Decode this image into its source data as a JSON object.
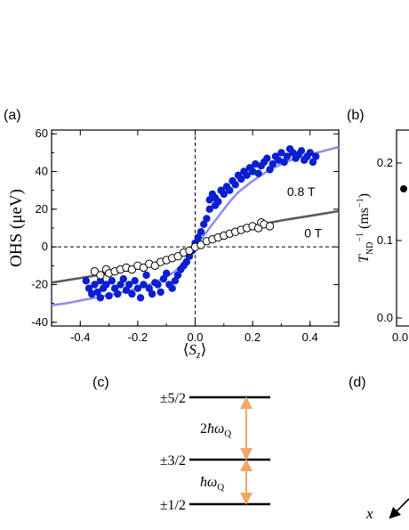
{
  "panel_labels": {
    "a": "(a)",
    "b": "(b)",
    "c": "(c)",
    "d": "(d)"
  },
  "colors": {
    "blue_points": "#0a1fcf",
    "blue_fit": "#8f8fe8",
    "gray_fit": "#5a5a5a",
    "arrow": "#f0a868"
  },
  "chart_data": [
    {
      "id": "a",
      "type": "scatter",
      "xlabel": "⟨S_z⟩",
      "ylabel": "OHS (μeV)",
      "xlim": [
        -0.5,
        0.5
      ],
      "ylim": [
        -42,
        62
      ],
      "x_ticks": [
        -0.4,
        -0.2,
        0.0,
        0.2,
        0.4
      ],
      "x_tick_labels": [
        "-0.4",
        "-0.2",
        "0.0",
        "0.2",
        "0.4"
      ],
      "y_ticks": [
        -40,
        -20,
        0,
        20,
        40,
        60
      ],
      "y_tick_labels": [
        "-40",
        "-20",
        "0",
        "20",
        "40",
        "60"
      ],
      "grid": false,
      "annotations": [
        {
          "text": "0.8 T",
          "x": 0.32,
          "y": 27
        },
        {
          "text": "0 T",
          "x": 0.38,
          "y": 5
        }
      ],
      "series": [
        {
          "marker": "filled",
          "color": "#0a1fcf",
          "points": [
            [
              -0.38,
              -18
            ],
            [
              -0.37,
              -22
            ],
            [
              -0.36,
              -25
            ],
            [
              -0.35,
              -20
            ],
            [
              -0.34,
              -24
            ],
            [
              -0.33,
              -18
            ],
            [
              -0.33,
              -27
            ],
            [
              -0.32,
              -22
            ],
            [
              -0.31,
              -20
            ],
            [
              -0.3,
              -26
            ],
            [
              -0.29,
              -18
            ],
            [
              -0.28,
              -22
            ],
            [
              -0.27,
              -25
            ],
            [
              -0.26,
              -20
            ],
            [
              -0.25,
              -17
            ],
            [
              -0.24,
              -23
            ],
            [
              -0.23,
              -20
            ],
            [
              -0.22,
              -25
            ],
            [
              -0.21,
              -18
            ],
            [
              -0.2,
              -22
            ],
            [
              -0.19,
              -27
            ],
            [
              -0.18,
              -20
            ],
            [
              -0.17,
              -15
            ],
            [
              -0.16,
              -22
            ],
            [
              -0.15,
              -25
            ],
            [
              -0.14,
              -19
            ],
            [
              -0.13,
              -20
            ],
            [
              -0.12,
              -24
            ],
            [
              -0.11,
              -17
            ],
            [
              -0.1,
              -14
            ],
            [
              -0.09,
              -20
            ],
            [
              -0.08,
              -22
            ],
            [
              -0.07,
              -18
            ],
            [
              -0.06,
              -15
            ],
            [
              -0.05,
              -12
            ],
            [
              -0.04,
              -10
            ],
            [
              -0.03,
              -8
            ],
            [
              -0.02,
              -5
            ],
            [
              -0.01,
              -2
            ],
            [
              0.0,
              2
            ],
            [
              0.01,
              5
            ],
            [
              0.02,
              8
            ],
            [
              0.03,
              12
            ],
            [
              0.04,
              15
            ],
            [
              0.05,
              20
            ],
            [
              0.05,
              25
            ],
            [
              0.06,
              28
            ],
            [
              0.07,
              22
            ],
            [
              0.07,
              26
            ],
            [
              0.08,
              24
            ],
            [
              0.09,
              30
            ],
            [
              0.1,
              28
            ],
            [
              0.11,
              32
            ],
            [
              0.12,
              30
            ],
            [
              0.13,
              35
            ],
            [
              0.14,
              33
            ],
            [
              0.15,
              38
            ],
            [
              0.16,
              36
            ],
            [
              0.17,
              40
            ],
            [
              0.18,
              38
            ],
            [
              0.19,
              42
            ],
            [
              0.2,
              40
            ],
            [
              0.21,
              44
            ],
            [
              0.22,
              39
            ],
            [
              0.23,
              43
            ],
            [
              0.24,
              45
            ],
            [
              0.25,
              47
            ],
            [
              0.26,
              41
            ],
            [
              0.27,
              44
            ],
            [
              0.28,
              48
            ],
            [
              0.29,
              46
            ],
            [
              0.3,
              50
            ],
            [
              0.31,
              45
            ],
            [
              0.32,
              48
            ],
            [
              0.33,
              52
            ],
            [
              0.34,
              50
            ],
            [
              0.35,
              47
            ],
            [
              0.36,
              49
            ],
            [
              0.37,
              51
            ],
            [
              0.38,
              46
            ],
            [
              0.39,
              48
            ],
            [
              0.4,
              50
            ],
            [
              0.41,
              45
            ],
            [
              0.42,
              48
            ]
          ]
        },
        {
          "marker": "open",
          "color": "#000000",
          "points": [
            [
              -0.35,
              -13
            ],
            [
              -0.33,
              -15
            ],
            [
              -0.31,
              -12
            ],
            [
              -0.3,
              -14
            ],
            [
              -0.28,
              -13
            ],
            [
              -0.26,
              -12
            ],
            [
              -0.24,
              -11
            ],
            [
              -0.22,
              -12
            ],
            [
              -0.2,
              -10
            ],
            [
              -0.18,
              -11
            ],
            [
              -0.16,
              -9
            ],
            [
              -0.14,
              -10
            ],
            [
              -0.12,
              -8
            ],
            [
              -0.1,
              -7
            ],
            [
              -0.08,
              -6
            ],
            [
              -0.06,
              -5
            ],
            [
              -0.04,
              -3
            ],
            [
              -0.02,
              -2
            ],
            [
              0.0,
              0
            ],
            [
              0.02,
              1
            ],
            [
              0.04,
              3
            ],
            [
              0.06,
              4
            ],
            [
              0.08,
              5
            ],
            [
              0.1,
              6
            ],
            [
              0.12,
              7
            ],
            [
              0.14,
              8
            ],
            [
              0.16,
              9
            ],
            [
              0.18,
              10
            ],
            [
              0.2,
              11
            ],
            [
              0.22,
              10
            ],
            [
              0.23,
              13
            ],
            [
              0.24,
              12
            ],
            [
              0.26,
              11
            ]
          ]
        },
        {
          "marker": "line",
          "color": "#8f8fe8",
          "points": [
            [
              -0.5,
              -31
            ],
            [
              -0.45,
              -30
            ],
            [
              -0.4,
              -28.5
            ],
            [
              -0.35,
              -27
            ],
            [
              -0.3,
              -25.5
            ],
            [
              -0.25,
              -24
            ],
            [
              -0.2,
              -22
            ],
            [
              -0.15,
              -19.5
            ],
            [
              -0.1,
              -16
            ],
            [
              -0.07,
              -13
            ],
            [
              -0.05,
              -10
            ],
            [
              -0.03,
              -6
            ],
            [
              -0.01,
              -2
            ],
            [
              0.0,
              0
            ],
            [
              0.01,
              2
            ],
            [
              0.03,
              6
            ],
            [
              0.05,
              10
            ],
            [
              0.07,
              14
            ],
            [
              0.09,
              18
            ],
            [
              0.12,
              24
            ],
            [
              0.15,
              29
            ],
            [
              0.2,
              35
            ],
            [
              0.25,
              40
            ],
            [
              0.3,
              44
            ],
            [
              0.35,
              47
            ],
            [
              0.4,
              49
            ],
            [
              0.45,
              51
            ],
            [
              0.5,
              53
            ]
          ]
        },
        {
          "marker": "line",
          "color": "#5a5a5a",
          "points": [
            [
              -0.5,
              -19
            ],
            [
              -0.4,
              -16.5
            ],
            [
              -0.3,
              -14
            ],
            [
              -0.2,
              -11
            ],
            [
              -0.1,
              -7
            ],
            [
              -0.05,
              -4.5
            ],
            [
              0.0,
              0
            ],
            [
              0.05,
              4.5
            ],
            [
              0.1,
              7
            ],
            [
              0.2,
              11
            ],
            [
              0.3,
              14
            ],
            [
              0.4,
              16.5
            ],
            [
              0.5,
              19
            ]
          ]
        }
      ]
    },
    {
      "id": "b",
      "type": "scatter",
      "ylabel": "T_ND^-1 (ms^-1)",
      "y_tick_labels": [
        "0.2",
        "0.1",
        "0.0"
      ],
      "x_tick_labels": [
        "0.0"
      ]
    }
  ],
  "level_diagram": {
    "levels": [
      "±5/2",
      "±3/2",
      "±1/2"
    ],
    "gaps": [
      "2ℏω_Q",
      "ℏω_Q"
    ]
  },
  "panel_d": {
    "axis_label": "x"
  }
}
